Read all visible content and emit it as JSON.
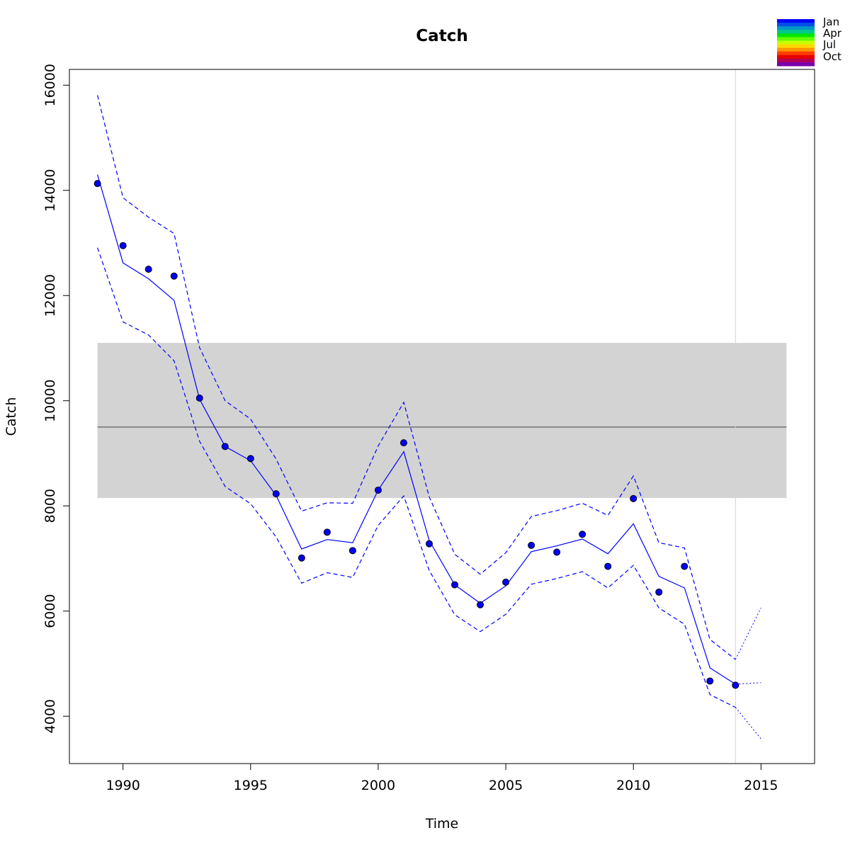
{
  "chart_data": {
    "type": "line",
    "title": "Catch",
    "xlabel": "Time",
    "ylabel": "Catch",
    "xlim": [
      1987.9,
      2017.1
    ],
    "ylim": [
      3100,
      16300
    ],
    "x_ticks": [
      1990,
      1995,
      2000,
      2005,
      2010,
      2015
    ],
    "y_ticks": [
      4000,
      6000,
      8000,
      10000,
      12000,
      14000,
      16000
    ],
    "x_tick_labels": [
      "1990",
      "1995",
      "2000",
      "2005",
      "2010",
      "2015"
    ],
    "y_tick_labels": [
      "4000",
      "6000",
      "8000",
      "10000",
      "12000",
      "14000",
      "16000"
    ],
    "reference": {
      "mean": 9500,
      "band_low": 8150,
      "band_high": 11100,
      "x_start": 1989,
      "x_end": 2016,
      "line_color": "#707070",
      "band_color": "#d3d3d3"
    },
    "forecast_start": 2014,
    "forecast_line_color": "#d3d3d3",
    "series": [
      {
        "role": "observed",
        "style": "points",
        "color": "#0000ff",
        "x": [
          1989,
          1990,
          1991,
          1992,
          1993,
          1994,
          1995,
          1996,
          1997,
          1998,
          1999,
          2000,
          2001,
          2002,
          2003,
          2004,
          2005,
          2006,
          2007,
          2008,
          2009,
          2010,
          2011,
          2012,
          2013,
          2014
        ],
        "y": [
          14130,
          12950,
          12500,
          12370,
          10050,
          9130,
          8900,
          8230,
          7010,
          7500,
          7150,
          8300,
          9200,
          7280,
          6500,
          6120,
          6550,
          7250,
          7120,
          7460,
          6850,
          8140,
          6360,
          6850,
          4670,
          4590
        ]
      },
      {
        "role": "fit",
        "style": "solid",
        "color": "#0000ff",
        "x": [
          1989,
          1990,
          1991,
          1992,
          1993,
          1994,
          1995,
          1996,
          1997,
          1998,
          1999,
          2000,
          2001,
          2002,
          2003,
          2004,
          2005,
          2006,
          2007,
          2008,
          2009,
          2010,
          2011,
          2012,
          2013,
          2014
        ],
        "y": [
          14300,
          12620,
          12320,
          11910,
          10030,
          9130,
          8860,
          8200,
          7180,
          7360,
          7300,
          8300,
          9030,
          7340,
          6500,
          6150,
          6480,
          7130,
          7240,
          7370,
          7090,
          7660,
          6660,
          6440,
          4920,
          4610
        ]
      },
      {
        "role": "upper",
        "style": "dashed",
        "color": "#0000ff",
        "x": [
          1989,
          1990,
          1991,
          1992,
          1993,
          1994,
          1995,
          1996,
          1997,
          1998,
          1999,
          2000,
          2001,
          2002,
          2003,
          2004,
          2005,
          2006,
          2007,
          2008,
          2009,
          2010,
          2011,
          2012,
          2013,
          2014
        ],
        "y": [
          15810,
          13860,
          13490,
          13180,
          11010,
          10000,
          9650,
          8890,
          7900,
          8060,
          8050,
          9140,
          9970,
          8170,
          7080,
          6700,
          7110,
          7800,
          7910,
          8050,
          7820,
          8570,
          7300,
          7200,
          5460,
          5080
        ]
      },
      {
        "role": "lower",
        "style": "dashed",
        "color": "#0000ff",
        "x": [
          1989,
          1990,
          1991,
          1992,
          1993,
          1994,
          1995,
          1996,
          1997,
          1998,
          1999,
          2000,
          2001,
          2002,
          2003,
          2004,
          2005,
          2006,
          2007,
          2008,
          2009,
          2010,
          2011,
          2012,
          2013,
          2014
        ],
        "y": [
          12910,
          11500,
          11250,
          10760,
          9230,
          8370,
          8040,
          7410,
          6530,
          6730,
          6640,
          7630,
          8190,
          6770,
          5930,
          5610,
          5940,
          6510,
          6620,
          6750,
          6440,
          6870,
          6060,
          5750,
          4410,
          4170
        ]
      },
      {
        "role": "forecast",
        "style": "dotted",
        "color": "#0000ff",
        "x": [
          2014,
          2015
        ],
        "y": [
          4610,
          4640
        ]
      },
      {
        "role": "forecast-upper",
        "style": "dotted",
        "color": "#0000ff",
        "x": [
          2014,
          2015
        ],
        "y": [
          5080,
          6060
        ]
      },
      {
        "role": "forecast-lower",
        "style": "dotted",
        "color": "#0000ff",
        "x": [
          2014,
          2015
        ],
        "y": [
          4170,
          3570
        ]
      }
    ],
    "legend": {
      "placement": "top-right",
      "labels": [
        "Jan",
        "Apr",
        "Jul",
        "Oct"
      ],
      "colors": [
        "#0000ff",
        "#0050e6",
        "#0096c8",
        "#00c88c",
        "#00e600",
        "#64ff00",
        "#c8ff00",
        "#ffd700",
        "#ff9600",
        "#ff3c00",
        "#e60000",
        "#b4005a",
        "#7800aa"
      ]
    }
  }
}
